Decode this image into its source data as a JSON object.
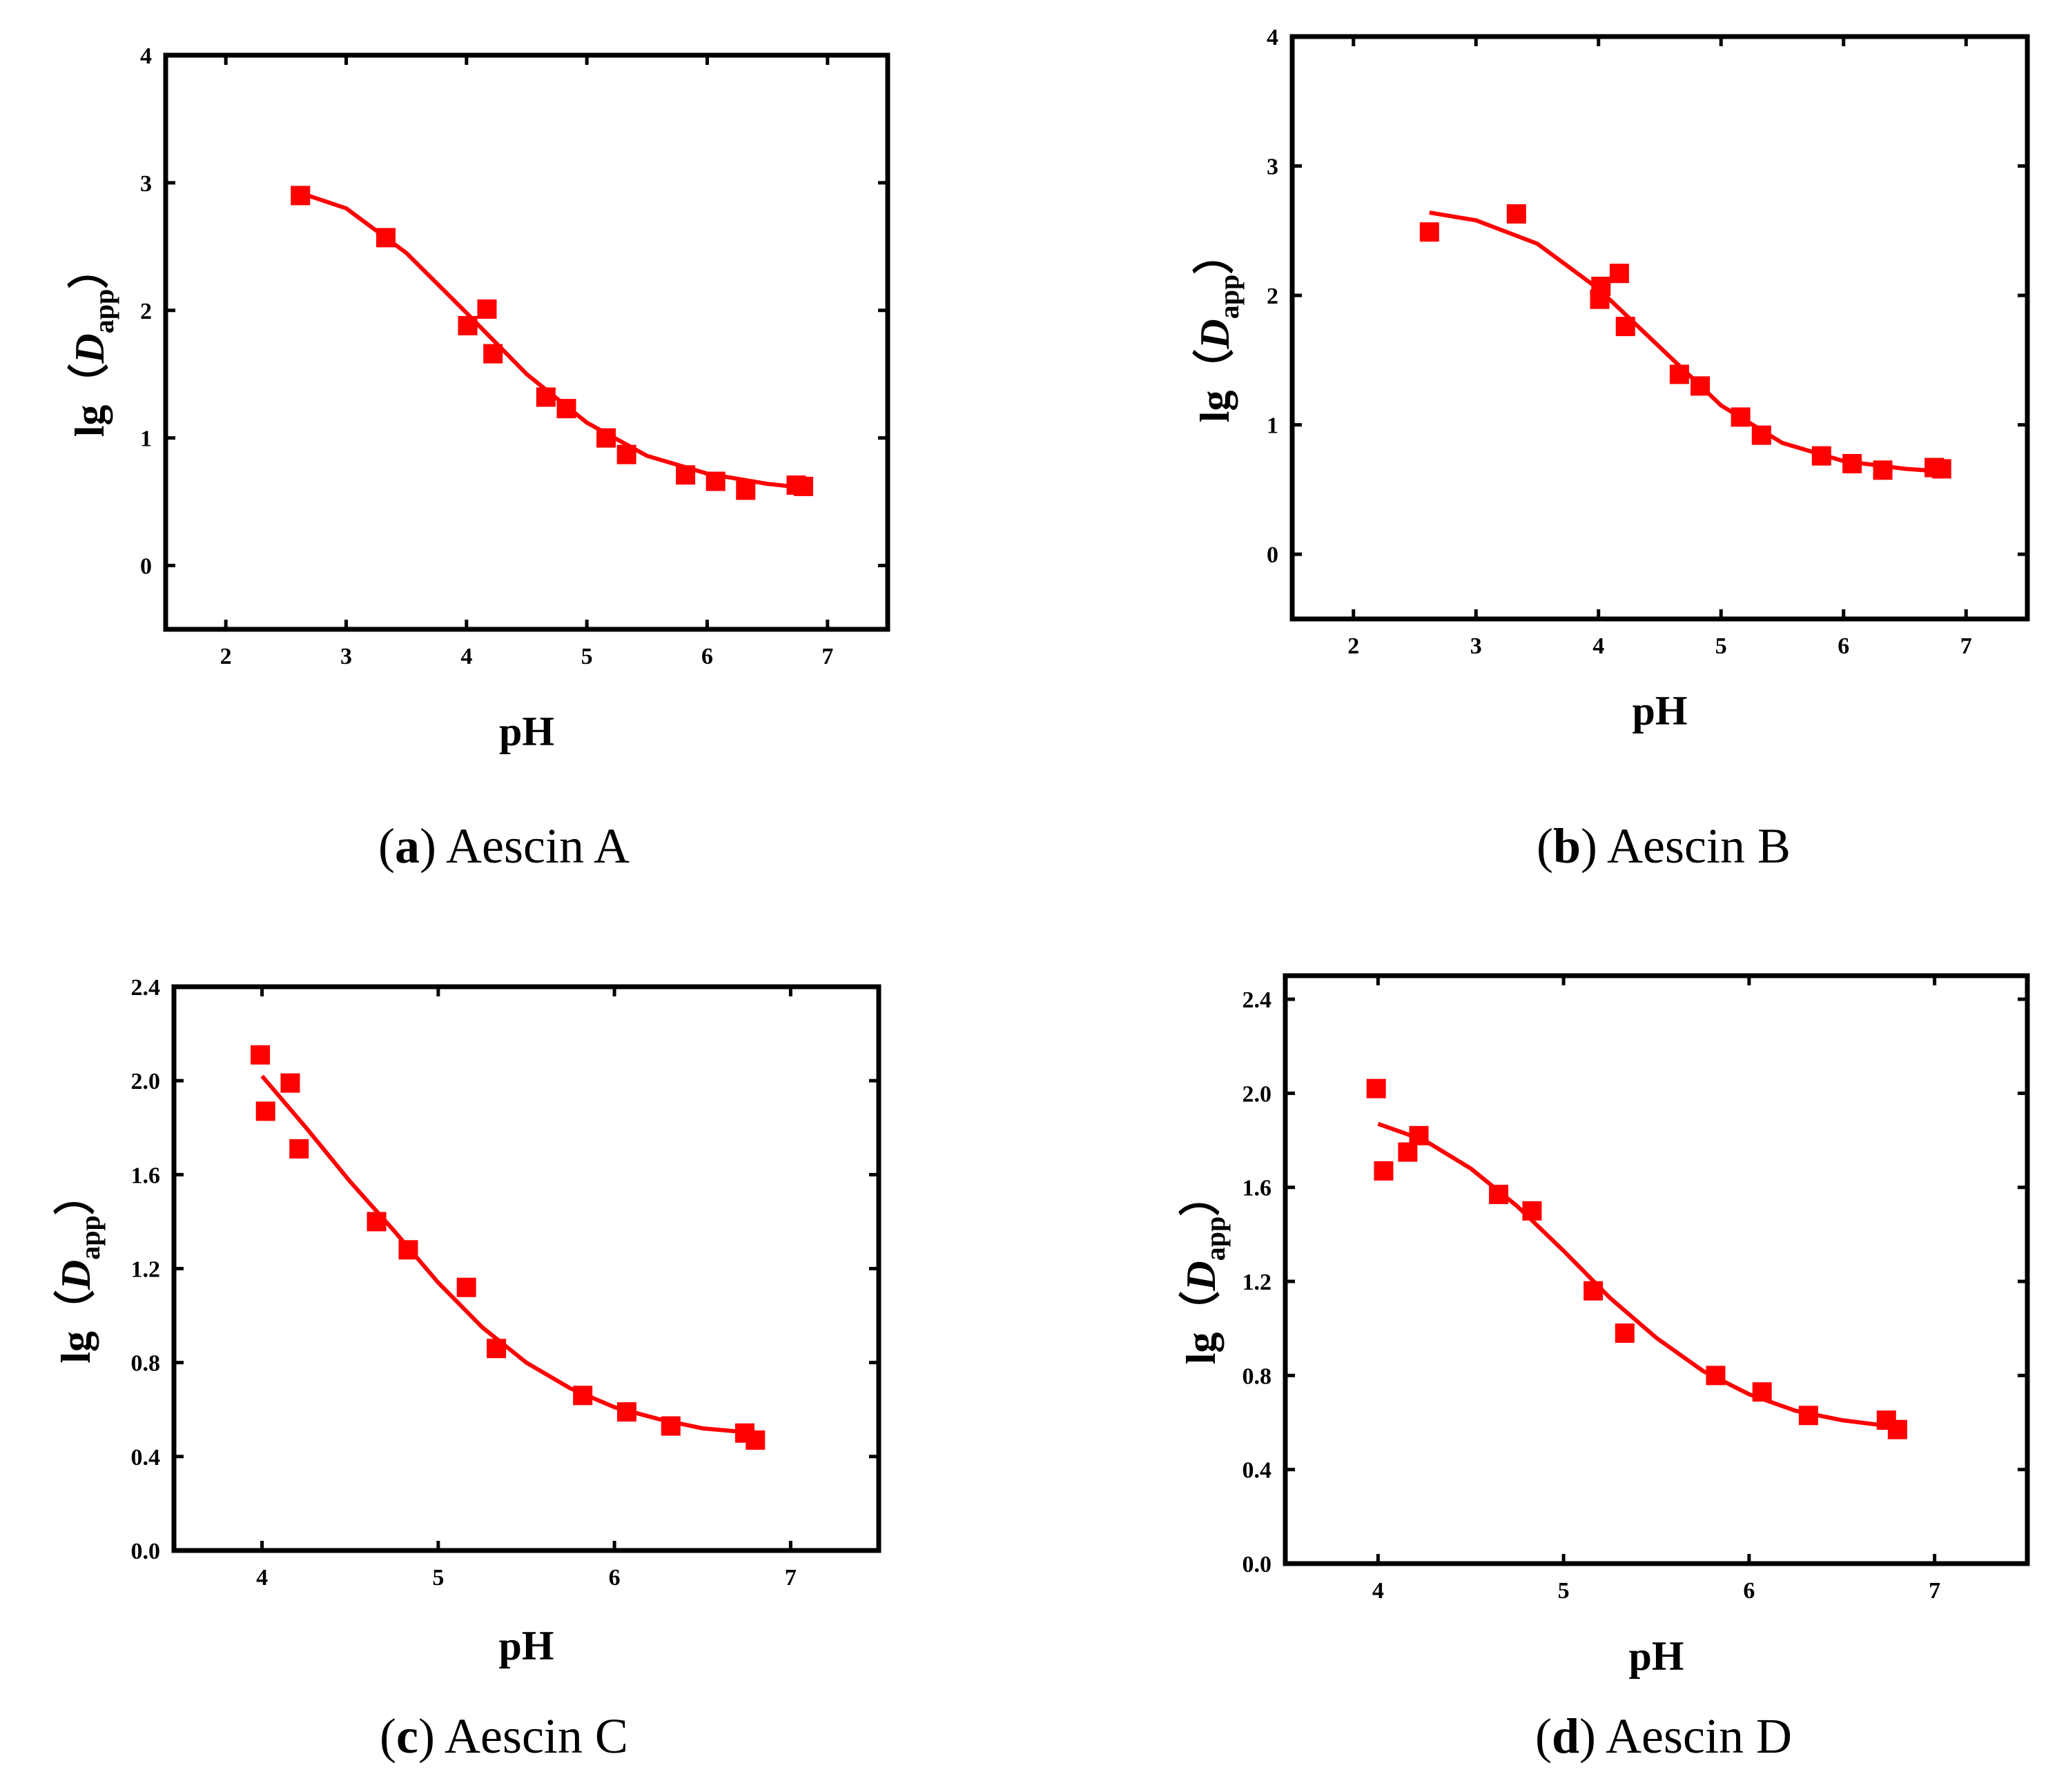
{
  "colors": {
    "marker": "#ff0000",
    "fit": "#ff0000",
    "axis": "#000000"
  },
  "chart_data": [
    {
      "type": "scatter",
      "caption_letter": "a",
      "caption_text": "Aescin A",
      "xlabel": "pH",
      "ylabel_prefix": "lg（",
      "ylabel_var": "D",
      "ylabel_sub": "app",
      "ylabel_suffix": "）",
      "xlim": [
        1.5,
        7.5
      ],
      "ylim": [
        -0.5,
        4
      ],
      "xticks": [
        2,
        3,
        4,
        5,
        6,
        7
      ],
      "xtick_labels": [
        "2",
        "3",
        "4",
        "5",
        "6",
        "7"
      ],
      "yticks": [
        0,
        1,
        2,
        3,
        4
      ],
      "ytick_labels": [
        "0",
        "1",
        "2",
        "3",
        "4"
      ],
      "points": [
        [
          2.62,
          2.9
        ],
        [
          3.33,
          2.57
        ],
        [
          4.01,
          1.88
        ],
        [
          4.17,
          2.01
        ],
        [
          4.22,
          1.66
        ],
        [
          4.66,
          1.32
        ],
        [
          4.83,
          1.23
        ],
        [
          5.16,
          1.0
        ],
        [
          5.33,
          0.87
        ],
        [
          5.82,
          0.71
        ],
        [
          6.07,
          0.66
        ],
        [
          6.32,
          0.59
        ],
        [
          6.74,
          0.63
        ],
        [
          6.8,
          0.62
        ]
      ],
      "fit": [
        [
          2.62,
          2.92
        ],
        [
          3.0,
          2.8
        ],
        [
          3.5,
          2.45
        ],
        [
          4.0,
          1.98
        ],
        [
          4.5,
          1.5
        ],
        [
          5.0,
          1.12
        ],
        [
          5.5,
          0.86
        ],
        [
          6.0,
          0.72
        ],
        [
          6.5,
          0.64
        ],
        [
          6.8,
          0.61
        ]
      ]
    },
    {
      "type": "scatter",
      "caption_letter": "b",
      "caption_text": "Aescin B",
      "xlabel": "pH",
      "ylabel_prefix": "lg（",
      "ylabel_var": "D",
      "ylabel_sub": "app",
      "ylabel_suffix": "）",
      "xlim": [
        1.5,
        7.5
      ],
      "ylim": [
        -0.5,
        4
      ],
      "xticks": [
        2,
        3,
        4,
        5,
        6,
        7
      ],
      "xtick_labels": [
        "2",
        "3",
        "4",
        "5",
        "6",
        "7"
      ],
      "yticks": [
        0,
        1,
        2,
        3,
        4
      ],
      "ytick_labels": [
        "0",
        "1",
        "2",
        "3",
        "4"
      ],
      "points": [
        [
          2.62,
          2.49
        ],
        [
          3.33,
          2.63
        ],
        [
          4.01,
          1.97
        ],
        [
          4.02,
          2.07
        ],
        [
          4.17,
          2.17
        ],
        [
          4.22,
          1.76
        ],
        [
          4.66,
          1.39
        ],
        [
          4.83,
          1.3
        ],
        [
          5.16,
          1.06
        ],
        [
          5.33,
          0.92
        ],
        [
          5.82,
          0.76
        ],
        [
          6.07,
          0.7
        ],
        [
          6.32,
          0.65
        ],
        [
          6.74,
          0.67
        ],
        [
          6.8,
          0.66
        ]
      ],
      "fit": [
        [
          2.62,
          2.64
        ],
        [
          3.0,
          2.58
        ],
        [
          3.5,
          2.4
        ],
        [
          4.0,
          2.05
        ],
        [
          4.5,
          1.6
        ],
        [
          5.0,
          1.15
        ],
        [
          5.5,
          0.86
        ],
        [
          6.0,
          0.72
        ],
        [
          6.5,
          0.66
        ],
        [
          6.8,
          0.64
        ]
      ]
    },
    {
      "type": "scatter",
      "caption_letter": "c",
      "caption_text": "Aescin C",
      "xlabel": "pH",
      "ylabel_prefix": "lg（",
      "ylabel_var": "D",
      "ylabel_sub": "app",
      "ylabel_suffix": "）",
      "xlim": [
        3.5,
        7.5
      ],
      "ylim": [
        0.0,
        2.4
      ],
      "xticks": [
        4,
        5,
        6,
        7
      ],
      "xtick_labels": [
        "4",
        "5",
        "6",
        "7"
      ],
      "yticks": [
        0.0,
        0.4,
        0.8,
        1.2,
        1.6,
        2.0,
        2.4
      ],
      "ytick_labels": [
        "0.0",
        "0.4",
        "0.8",
        "1.2",
        "1.6",
        "2.0",
        "2.4"
      ],
      "points": [
        [
          3.99,
          2.11
        ],
        [
          4.02,
          1.87
        ],
        [
          4.16,
          1.99
        ],
        [
          4.21,
          1.71
        ],
        [
          4.65,
          1.4
        ],
        [
          4.83,
          1.28
        ],
        [
          5.16,
          1.12
        ],
        [
          5.33,
          0.86
        ],
        [
          5.82,
          0.66
        ],
        [
          6.07,
          0.59
        ],
        [
          6.32,
          0.53
        ],
        [
          6.74,
          0.5
        ],
        [
          6.8,
          0.47
        ]
      ],
      "fit": [
        [
          4.0,
          2.02
        ],
        [
          4.25,
          1.8
        ],
        [
          4.5,
          1.57
        ],
        [
          4.75,
          1.36
        ],
        [
          5.0,
          1.14
        ],
        [
          5.25,
          0.95
        ],
        [
          5.5,
          0.8
        ],
        [
          5.75,
          0.69
        ],
        [
          6.0,
          0.61
        ],
        [
          6.25,
          0.56
        ],
        [
          6.5,
          0.52
        ],
        [
          6.8,
          0.5
        ]
      ]
    },
    {
      "type": "scatter",
      "caption_letter": "d",
      "caption_text": "Aescin D",
      "xlabel": "pH",
      "ylabel_prefix": "lg（",
      "ylabel_var": "D",
      "ylabel_sub": "app",
      "ylabel_suffix": "）",
      "xlim": [
        3.5,
        7.5
      ],
      "ylim": [
        0.0,
        2.5
      ],
      "xticks": [
        4,
        5,
        6,
        7
      ],
      "xtick_labels": [
        "4",
        "5",
        "6",
        "7"
      ],
      "yticks": [
        0.0,
        0.4,
        0.8,
        1.2,
        1.6,
        2.0,
        2.4
      ],
      "ytick_labels": [
        "0.0",
        "0.4",
        "0.8",
        "1.2",
        "1.6",
        "2.0",
        "2.4"
      ],
      "points": [
        [
          3.99,
          2.02
        ],
        [
          4.03,
          1.67
        ],
        [
          4.16,
          1.75
        ],
        [
          4.22,
          1.82
        ],
        [
          4.65,
          1.57
        ],
        [
          4.83,
          1.5
        ],
        [
          5.16,
          1.16
        ],
        [
          5.33,
          0.98
        ],
        [
          5.82,
          0.8
        ],
        [
          6.07,
          0.73
        ],
        [
          6.32,
          0.63
        ],
        [
          6.74,
          0.61
        ],
        [
          6.8,
          0.57
        ]
      ],
      "fit": [
        [
          4.0,
          1.87
        ],
        [
          4.25,
          1.8
        ],
        [
          4.5,
          1.68
        ],
        [
          4.75,
          1.52
        ],
        [
          5.0,
          1.33
        ],
        [
          5.25,
          1.13
        ],
        [
          5.5,
          0.96
        ],
        [
          5.75,
          0.82
        ],
        [
          6.0,
          0.72
        ],
        [
          6.25,
          0.65
        ],
        [
          6.5,
          0.61
        ],
        [
          6.8,
          0.58
        ]
      ]
    }
  ]
}
